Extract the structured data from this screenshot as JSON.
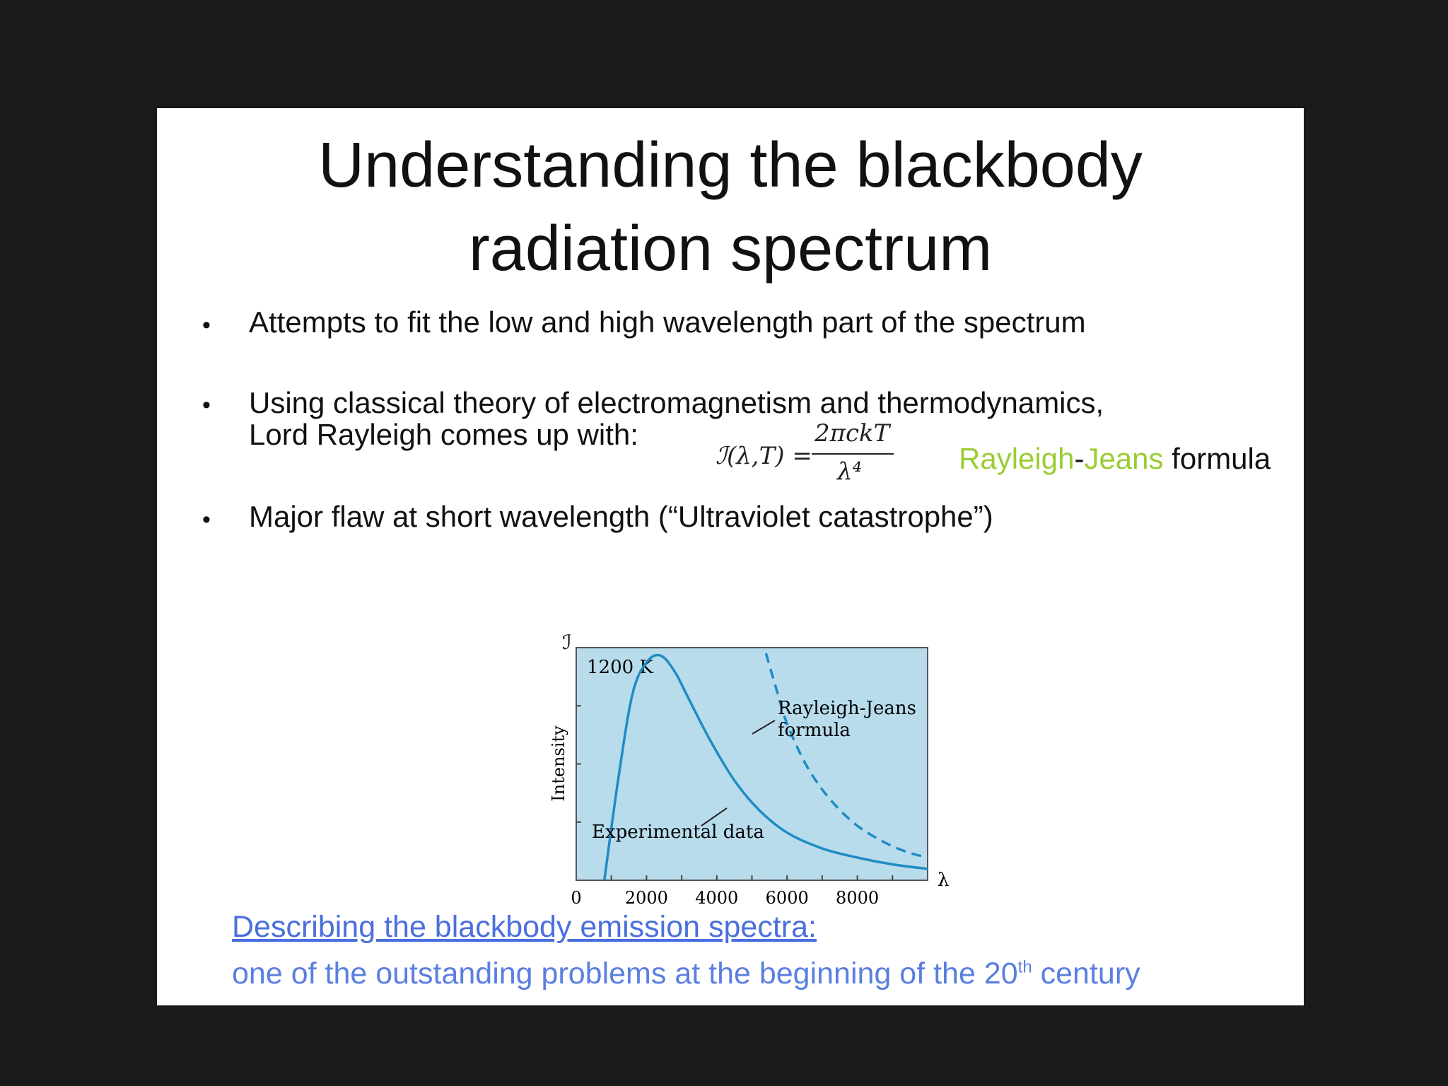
{
  "title_lines": [
    "Understanding the blackbody",
    "radiation spectrum"
  ],
  "bullets": [
    {
      "text": "Attempts to fit the low and high wavelength part of the spectrum"
    },
    {
      "line1": "Using classical theory of electromagnetism and thermodynamics,",
      "line2": "Lord Rayleigh comes up with:"
    },
    {
      "text": "Major flaw at short wavelength (“Ultraviolet catastrophe”)"
    }
  ],
  "bullet_symbol": "•",
  "formula": {
    "lhs": "ℐ(λ,T) =",
    "numerator": "2πckT",
    "denominator": "λ⁴"
  },
  "rj_label": {
    "part1": "Rayleigh",
    "hyphen": "-",
    "part2": "Jeans",
    "part3": " formula"
  },
  "footer": {
    "line1": "Describing the blackbody emission spectra:",
    "line2_prefix": "one of the outstanding problems at the beginning of the 20",
    "line2_sup": "th",
    "line2_suffix": " century"
  },
  "chart_data": {
    "type": "line",
    "title": "1200 K",
    "xlabel": "λ",
    "ylabel": "Intensity",
    "y_symbol": "ℐ",
    "xlim": [
      0,
      10000
    ],
    "ylim": [
      0,
      1
    ],
    "x_ticks": [
      0,
      2000,
      4000,
      6000,
      8000
    ],
    "x_tick_labels": [
      "0",
      "2000",
      "4000",
      "6000",
      "8000"
    ],
    "background": "#b8dcec",
    "line_color": "#1f8cc4",
    "series": [
      {
        "name": "Experimental data",
        "style": "solid",
        "x": [
          800,
          1200,
          1600,
          2000,
          2400,
          2800,
          3200,
          3800,
          4500,
          5200,
          6000,
          7000,
          8000,
          9000,
          10000
        ],
        "y": [
          0.0,
          0.45,
          0.82,
          0.96,
          0.99,
          0.92,
          0.8,
          0.62,
          0.44,
          0.31,
          0.21,
          0.14,
          0.1,
          0.07,
          0.05
        ]
      },
      {
        "name": "Rayleigh-Jeans formula",
        "style": "dashed",
        "x": [
          5400,
          5700,
          6000,
          6500,
          7000,
          7500,
          8000,
          8500,
          9000,
          9500,
          10000
        ],
        "y": [
          1.0,
          0.84,
          0.69,
          0.52,
          0.4,
          0.31,
          0.24,
          0.19,
          0.15,
          0.12,
          0.1
        ]
      }
    ],
    "annotations": [
      "Rayleigh-Jeans",
      "formula",
      "Experimental data"
    ]
  }
}
